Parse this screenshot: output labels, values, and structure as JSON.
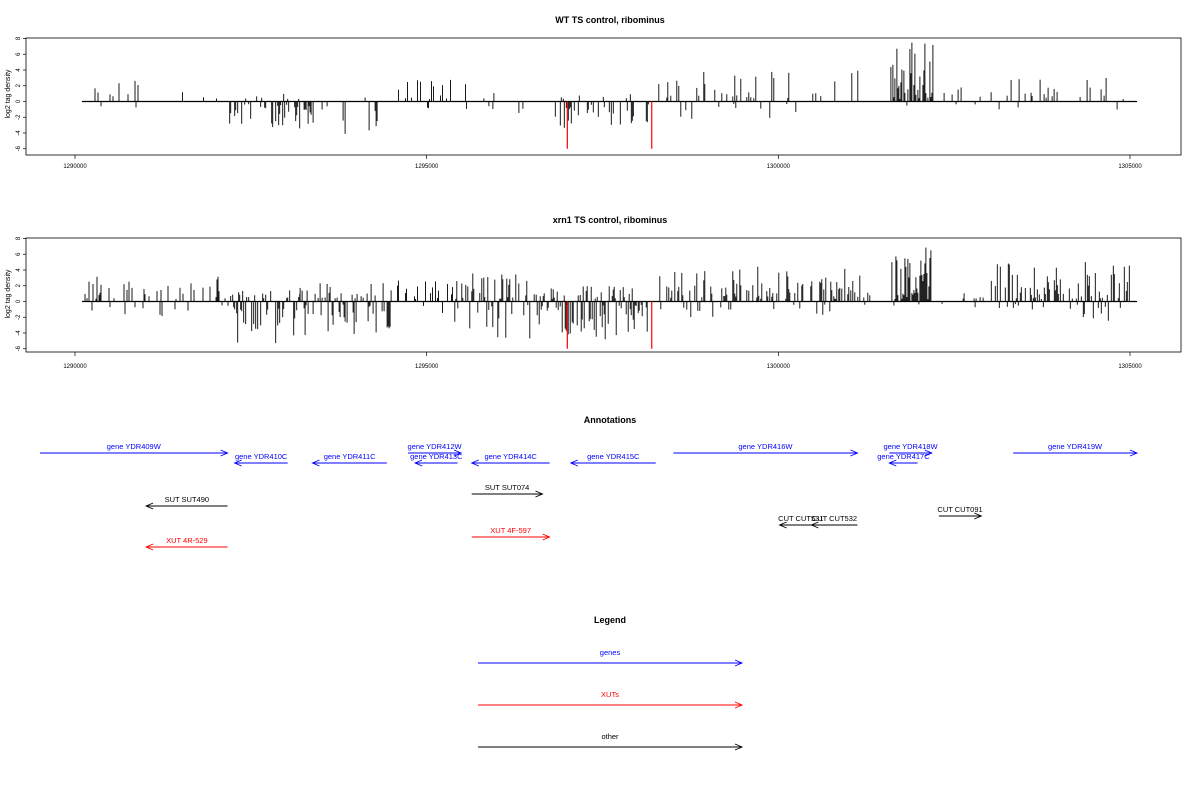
{
  "chart_data": [
    {
      "type": "bar",
      "title": "WT TS control, ribominus",
      "ylabel": "log2 tag density",
      "xlim": [
        1290000,
        1305000
      ],
      "ylim": [
        -6,
        8
      ],
      "xticks": [
        1290000,
        1295000,
        1300000,
        1305000
      ],
      "yticks": [
        8,
        6,
        4,
        2,
        0,
        -2,
        -4,
        -6
      ],
      "series": [
        {
          "color": "#000000",
          "bins": [
            {
              "start": 1290100,
              "end": 1291200,
              "density": 0.15,
              "pos_max": 3.5,
              "neg_max": -1.8
            },
            {
              "start": 1291500,
              "end": 1292100,
              "density": 0.15,
              "pos_max": 2.5,
              "neg_max": -1.5
            },
            {
              "start": 1292200,
              "end": 1293200,
              "density": 0.55,
              "pos_max": 1.0,
              "neg_max": -3.5
            },
            {
              "start": 1293200,
              "end": 1294400,
              "density": 0.25,
              "pos_max": 0.8,
              "neg_max": -4.2
            },
            {
              "start": 1294600,
              "end": 1295600,
              "density": 0.3,
              "pos_max": 3.3,
              "neg_max": -1.0
            },
            {
              "start": 1295600,
              "end": 1296400,
              "density": 0.3,
              "pos_max": 1.5,
              "neg_max": -2.8
            },
            {
              "start": 1296800,
              "end": 1298200,
              "density": 0.5,
              "pos_max": 1.0,
              "neg_max": -3.5
            },
            {
              "start": 1298300,
              "end": 1301200,
              "density": 0.25,
              "pos_max": 4.0,
              "neg_max": -2.2
            },
            {
              "start": 1301600,
              "end": 1302200,
              "density": 1.0,
              "pos_max": 7.5,
              "neg_max": -1.8
            },
            {
              "start": 1302300,
              "end": 1305000,
              "density": 0.18,
              "pos_max": 3.0,
              "neg_max": -1.2
            }
          ]
        },
        {
          "color": "#ff0000",
          "x": [
            1297000,
            1298200
          ],
          "values": [
            -6,
            -6
          ]
        }
      ]
    },
    {
      "type": "bar",
      "title": "xrn1 TS control, ribominus",
      "ylabel": "log2 tag density",
      "xlim": [
        1290000,
        1305000
      ],
      "ylim": [
        -6,
        8
      ],
      "xticks": [
        1290000,
        1295000,
        1300000,
        1305000
      ],
      "yticks": [
        8,
        6,
        4,
        2,
        0,
        -2,
        -4,
        -6
      ],
      "series": [
        {
          "color": "#000000",
          "bins": [
            {
              "start": 1290100,
              "end": 1292200,
              "density": 0.45,
              "pos_max": 3.2,
              "neg_max": -2.2
            },
            {
              "start": 1292200,
              "end": 1293200,
              "density": 0.9,
              "pos_max": 1.5,
              "neg_max": -5.5
            },
            {
              "start": 1293200,
              "end": 1294500,
              "density": 0.8,
              "pos_max": 2.5,
              "neg_max": -4.5
            },
            {
              "start": 1294500,
              "end": 1295400,
              "density": 0.45,
              "pos_max": 2.8,
              "neg_max": -1.5
            },
            {
              "start": 1295400,
              "end": 1296500,
              "density": 0.8,
              "pos_max": 3.8,
              "neg_max": -5.0
            },
            {
              "start": 1296500,
              "end": 1298200,
              "density": 0.85,
              "pos_max": 2.0,
              "neg_max": -5.2
            },
            {
              "start": 1298300,
              "end": 1301300,
              "density": 0.55,
              "pos_max": 4.5,
              "neg_max": -2.0
            },
            {
              "start": 1301600,
              "end": 1302200,
              "density": 1.0,
              "pos_max": 7.2,
              "neg_max": -1.5
            },
            {
              "start": 1302300,
              "end": 1303000,
              "density": 0.15,
              "pos_max": 1.5,
              "neg_max": -0.8
            },
            {
              "start": 1303000,
              "end": 1305000,
              "density": 0.65,
              "pos_max": 5.0,
              "neg_max": -2.8
            }
          ]
        },
        {
          "color": "#ff0000",
          "x": [
            1297000,
            1298200
          ],
          "values": [
            -6,
            -6
          ]
        }
      ]
    }
  ],
  "annotations": {
    "title": "Annotations",
    "features": [
      {
        "label": "gene YDR409W",
        "start": 1289500,
        "end": 1292150,
        "strand": "+",
        "type": "gene"
      },
      {
        "label": "gene YDR410C",
        "start": 1292250,
        "end": 1293000,
        "strand": "-",
        "type": "gene"
      },
      {
        "label": "gene YDR411C",
        "start": 1293350,
        "end": 1294400,
        "strand": "-",
        "type": "gene"
      },
      {
        "label": "gene YDR412W",
        "start": 1294700,
        "end": 1295450,
        "strand": "+",
        "type": "gene"
      },
      {
        "label": "gene YDR413C",
        "start": 1294800,
        "end": 1295400,
        "strand": "-",
        "type": "gene"
      },
      {
        "label": "gene YDR414C",
        "start": 1295600,
        "end": 1296700,
        "strand": "-",
        "type": "gene"
      },
      {
        "label": "gene YDR415C",
        "start": 1297000,
        "end": 1298200,
        "strand": "-",
        "type": "gene"
      },
      {
        "label": "gene YDR416W",
        "start": 1298450,
        "end": 1301050,
        "strand": "+",
        "type": "gene"
      },
      {
        "label": "gene YDR418W",
        "start": 1301500,
        "end": 1302100,
        "strand": "+",
        "type": "gene"
      },
      {
        "label": "gene YDR417C",
        "start": 1301500,
        "end": 1301900,
        "strand": "-",
        "type": "gene"
      },
      {
        "label": "gene YDR419W",
        "start": 1303250,
        "end": 1305000,
        "strand": "+",
        "type": "gene"
      },
      {
        "label": "SUT SUT490",
        "start": 1291000,
        "end": 1292150,
        "strand": "-",
        "type": "other"
      },
      {
        "label": "SUT SUT074",
        "start": 1295600,
        "end": 1296600,
        "strand": "+",
        "type": "other"
      },
      {
        "label": "CUT CUT531",
        "start": 1299950,
        "end": 1300550,
        "strand": "-",
        "type": "other"
      },
      {
        "label": "CUT CUT532",
        "start": 1300400,
        "end": 1301050,
        "strand": "-",
        "type": "other"
      },
      {
        "label": "CUT CUT091",
        "start": 1302200,
        "end": 1302800,
        "strand": "+",
        "type": "other"
      },
      {
        "label": "XUT 4R-529",
        "start": 1291000,
        "end": 1292150,
        "strand": "-",
        "type": "xut"
      },
      {
        "label": "XUT 4F-597",
        "start": 1295600,
        "end": 1296700,
        "strand": "+",
        "type": "xut"
      }
    ]
  },
  "legend": {
    "title": "Legend",
    "items": [
      {
        "label": "genes",
        "color": "#0000ff"
      },
      {
        "label": "XUTs",
        "color": "#ff0000"
      },
      {
        "label": "other",
        "color": "#000000"
      }
    ]
  }
}
